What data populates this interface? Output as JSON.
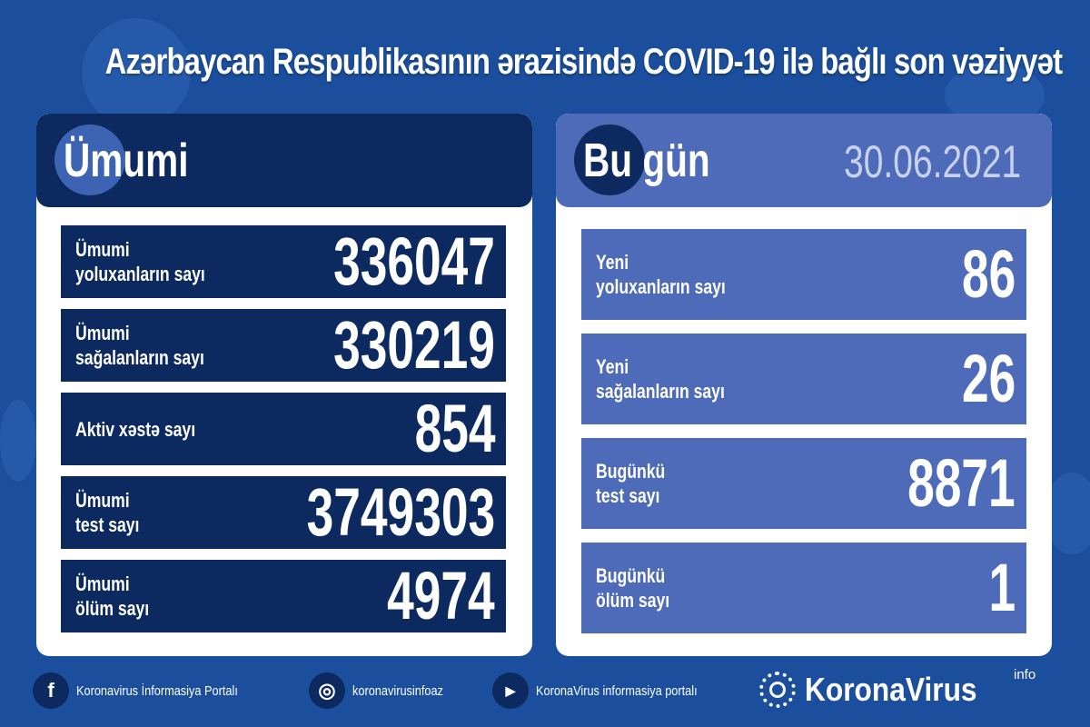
{
  "title": "Azərbaycan Respublikasının ərazisində COVID-19 ilə bağlı son vəziyyət",
  "colors": {
    "background": "#1b4f9e",
    "navy": "#0c2a5f",
    "light_blue": "#4d6bb8",
    "date": "#c9d1ea"
  },
  "total": {
    "heading": "Ümumi",
    "rows": [
      {
        "line1": "Ümumi",
        "line2": "yoluxanların sayı",
        "value": "336047"
      },
      {
        "line1": "Ümumi",
        "line2": "sağalanların sayı",
        "value": "330219"
      },
      {
        "line1": "Aktiv xəstə sayı",
        "line2": "",
        "value": "854"
      },
      {
        "line1": "Ümumi",
        "line2": "test sayı",
        "value": "3749303"
      },
      {
        "line1": "Ümumi",
        "line2": "ölüm sayı",
        "value": "4974"
      }
    ]
  },
  "today": {
    "heading": "Bu gün",
    "date": "30.06.2021",
    "rows": [
      {
        "line1": "Yeni",
        "line2": "yoluxanların sayı",
        "value": "86"
      },
      {
        "line1": "Yeni",
        "line2": "sağalanların sayı",
        "value": "26"
      },
      {
        "line1": "Bugünkü",
        "line2": "test sayı",
        "value": "8871"
      },
      {
        "line1": "Bugünkü",
        "line2": "ölüm sayı",
        "value": "1"
      }
    ]
  },
  "footer": {
    "links": [
      {
        "icon": "facebook-icon",
        "glyph": "f",
        "text": "Koronavirus İnformasiya Portalı"
      },
      {
        "icon": "instagram-icon",
        "glyph": "◎",
        "text": "koronavirusinfoaz"
      },
      {
        "icon": "youtube-icon",
        "glyph": "▶",
        "text": "KoronaVirus informasiya portalı"
      }
    ],
    "brand": "KoronaVirus",
    "brand_sup": "info"
  }
}
